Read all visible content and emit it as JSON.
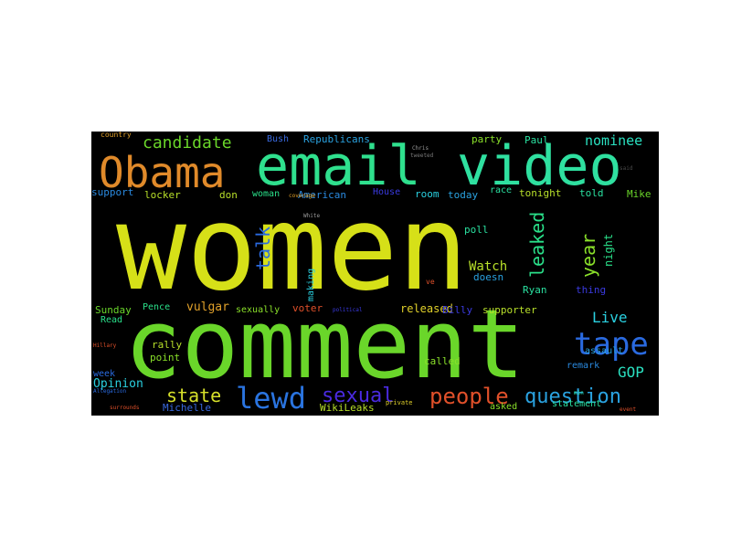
{
  "words": [
    {
      "text": "women",
      "color": "#d6e018"
    },
    {
      "text": "comment",
      "color": "#6ad62a"
    },
    {
      "text": "email",
      "color": "#2fe08e"
    },
    {
      "text": "video",
      "color": "#2fe0a0"
    },
    {
      "text": "Obama",
      "color": "#e08a2a"
    },
    {
      "text": "tape",
      "color": "#2a6ae0"
    },
    {
      "text": "lewd",
      "color": "#2a74e0"
    },
    {
      "text": "sexual",
      "color": "#4a2ae0"
    },
    {
      "text": "people",
      "color": "#e0502a"
    },
    {
      "text": "question",
      "color": "#2aa2e0"
    },
    {
      "text": "candidate",
      "color": "#6ad62a"
    },
    {
      "text": "state",
      "color": "#d6e02a"
    },
    {
      "text": "leaked",
      "color": "#2ae08a"
    },
    {
      "text": "year",
      "color": "#8ae02a"
    },
    {
      "text": "talk",
      "color": "#2a6ae0"
    },
    {
      "text": "nominee",
      "color": "#2ae0c0"
    },
    {
      "text": "Live",
      "color": "#2ad0e0"
    },
    {
      "text": "GOP",
      "color": "#2ae0c0"
    },
    {
      "text": "Watch",
      "color": "#b8e02a"
    },
    {
      "text": "Opinion",
      "color": "#2ad0e0"
    },
    {
      "text": "night",
      "color": "#2ae08a"
    },
    {
      "text": "thing",
      "color": "#3a3ae0"
    },
    {
      "text": "released",
      "color": "#e0d02a"
    },
    {
      "text": "vulgar",
      "color": "#e0a02a"
    },
    {
      "text": "Billy",
      "color": "#3a3ae0"
    },
    {
      "text": "supporter",
      "color": "#b8e02a"
    },
    {
      "text": "Republicans",
      "color": "#2aa2e0"
    },
    {
      "text": "Bush",
      "color": "#3a6ae0"
    },
    {
      "text": "party",
      "color": "#8ae02a"
    },
    {
      "text": "Paul",
      "color": "#2ae0a0"
    },
    {
      "text": "support",
      "color": "#2a8ae0"
    },
    {
      "text": "locker",
      "color": "#b8e02a"
    },
    {
      "text": "don",
      "color": "#b8e02a"
    },
    {
      "text": "woman",
      "color": "#2ae08a"
    },
    {
      "text": "American",
      "color": "#2a8ae0"
    },
    {
      "text": "House",
      "color": "#3a3ae0"
    },
    {
      "text": "room",
      "color": "#2ad0e0"
    },
    {
      "text": "today",
      "color": "#2aa2e0"
    },
    {
      "text": "race",
      "color": "#2ae0a0"
    },
    {
      "text": "tonight",
      "color": "#b8e02a"
    },
    {
      "text": "told",
      "color": "#2ae0a0"
    },
    {
      "text": "Mike",
      "color": "#6ad62a"
    },
    {
      "text": "poll",
      "color": "#2ae0a0"
    },
    {
      "text": "doesn",
      "color": "#2aa2e0"
    },
    {
      "text": "Ryan",
      "color": "#2ae0a0"
    },
    {
      "text": "Sunday",
      "color": "#6ad62a"
    },
    {
      "text": "Pence",
      "color": "#2ae08a"
    },
    {
      "text": "Read",
      "color": "#2ae08a"
    },
    {
      "text": "sexually",
      "color": "#8ae02a"
    },
    {
      "text": "voter",
      "color": "#e0502a"
    },
    {
      "text": "making",
      "color": "#2ad0e0"
    },
    {
      "text": "rally",
      "color": "#b8e02a"
    },
    {
      "text": "point",
      "color": "#8ae02a"
    },
    {
      "text": "week",
      "color": "#2a6ae0"
    },
    {
      "text": "Michelle",
      "color": "#3a6ae0"
    },
    {
      "text": "WikiLeaks",
      "color": "#b8e02a"
    },
    {
      "text": "called",
      "color": "#8ae02a"
    },
    {
      "text": "asked",
      "color": "#8ae02a"
    },
    {
      "text": "assault",
      "color": "#2aa2e0"
    },
    {
      "text": "remark",
      "color": "#2a8ae0"
    },
    {
      "text": "statement",
      "color": "#2ae0a0"
    },
    {
      "text": "country",
      "color": "#e0a02a"
    },
    {
      "text": "Chris",
      "color": "#9a9a9a"
    },
    {
      "text": "tweeted",
      "color": "#7a7a7a"
    },
    {
      "text": "said",
      "color": "#4a4a4a"
    },
    {
      "text": "private",
      "color": "#e0d02a"
    },
    {
      "text": "accused",
      "color": "#e0502a"
    },
    {
      "text": "ve",
      "color": "#e0502a"
    },
    {
      "text": "min",
      "color": "#2ae0a0"
    },
    {
      "text": "event",
      "color": "#e0502a"
    },
    {
      "text": "Allegation",
      "color": "#2a6ae0"
    },
    {
      "text": "Hillary",
      "color": "#e0502a"
    },
    {
      "text": "White",
      "color": "#9a9a9a"
    },
    {
      "text": "political",
      "color": "#3a3ae0"
    },
    {
      "text": "coverage",
      "color": "#e0a02a"
    },
    {
      "text": "surrounds",
      "color": "#e0502a"
    }
  ]
}
